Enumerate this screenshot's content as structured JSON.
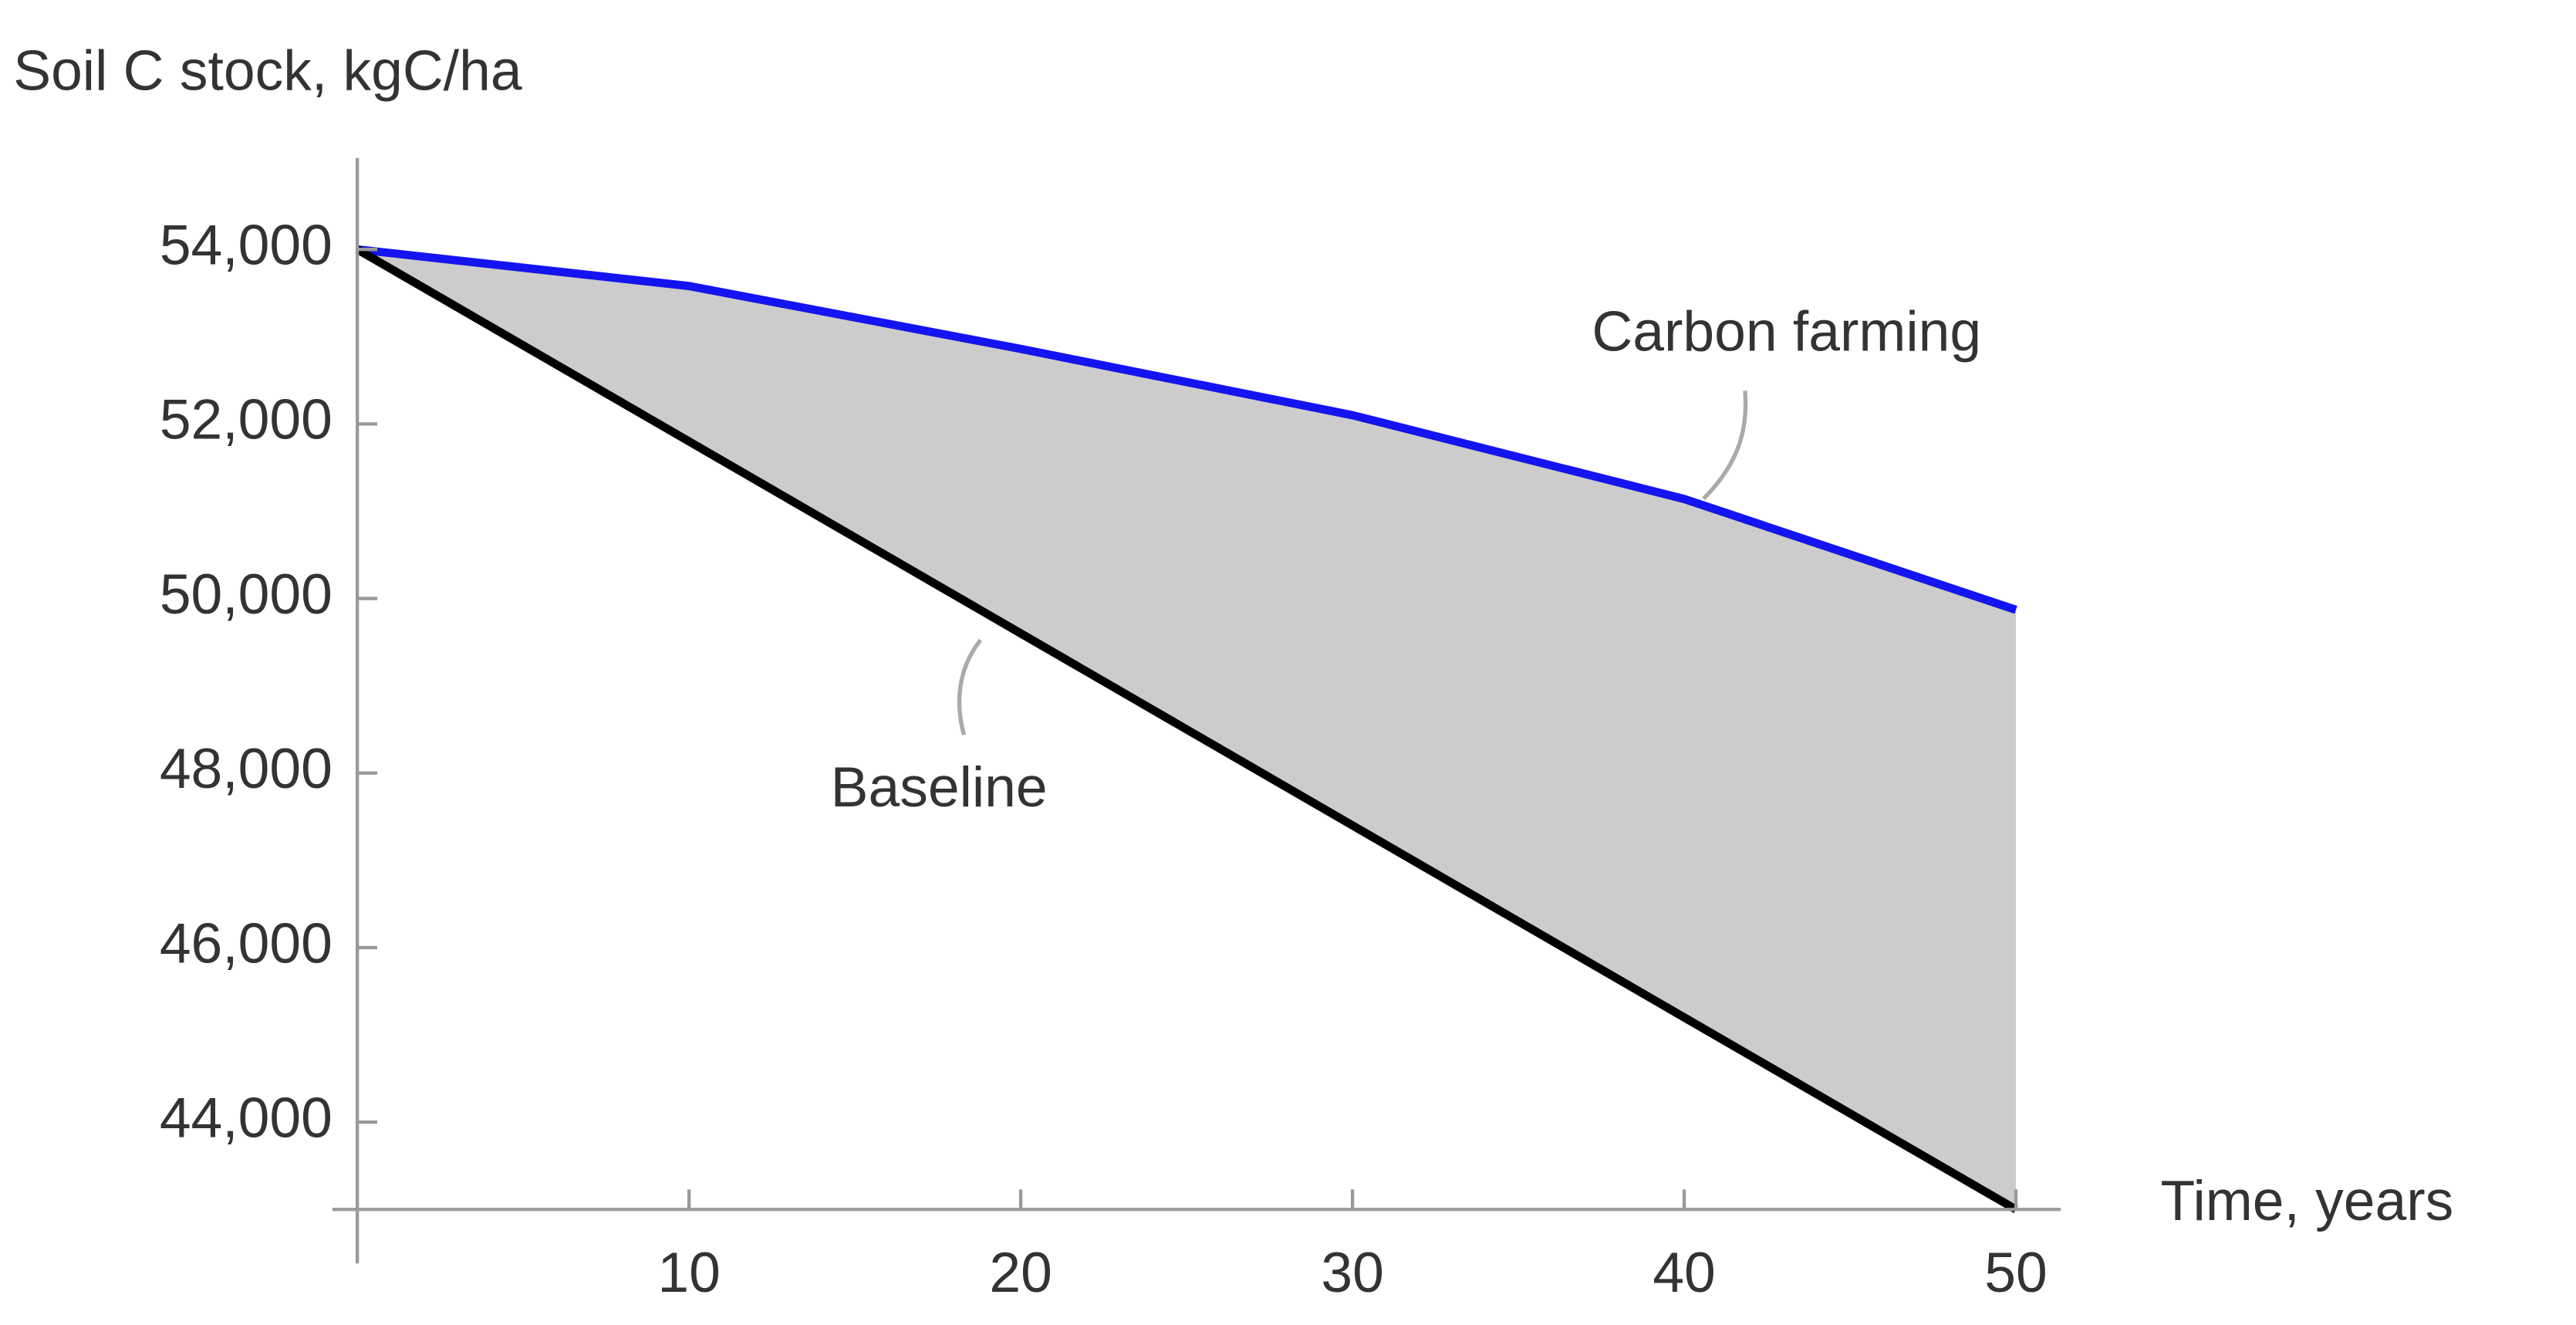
{
  "chart_data": {
    "type": "line",
    "y_label": "Soil C stock, kgC/ha",
    "x_label": "Time, years",
    "x": [
      0,
      10,
      20,
      30,
      40,
      50
    ],
    "series": [
      {
        "name": "Carbon farming",
        "color": "#1414f0",
        "values": [
          54000,
          53580,
          52860,
          52100,
          51140,
          49870
        ]
      },
      {
        "name": "Baseline",
        "color": "#000000",
        "values": [
          54000,
          51800,
          49600,
          47400,
          45200,
          43000
        ]
      }
    ],
    "fill_between": true,
    "fill_color": "#cccccc",
    "xlim": [
      0,
      50
    ],
    "xticks": [
      10,
      20,
      30,
      40,
      50
    ],
    "ylim": [
      43000,
      55000
    ],
    "yticks": [
      {
        "value": 44000,
        "label": "44,000"
      },
      {
        "value": 46000,
        "label": "46,000"
      },
      {
        "value": 48000,
        "label": "48,000"
      },
      {
        "value": 50000,
        "label": "50,000"
      },
      {
        "value": 52000,
        "label": "52,000"
      },
      {
        "value": 54000,
        "label": "54,000"
      }
    ],
    "grid": false
  }
}
